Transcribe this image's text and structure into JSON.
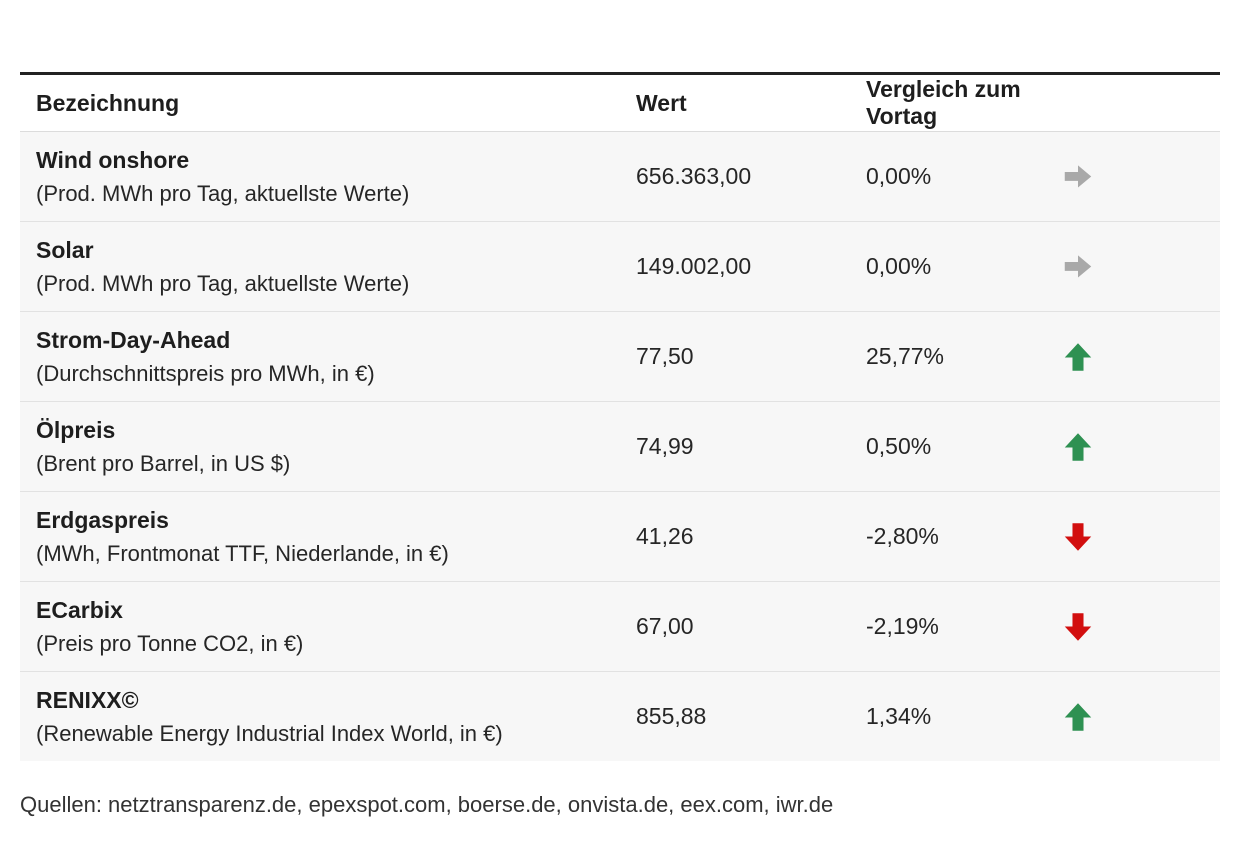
{
  "table": {
    "headers": {
      "name": "Bezeichnung",
      "value": "Wert",
      "change": "Vergleich zum Vortag"
    },
    "rows": [
      {
        "name": "Wind onshore",
        "sub": "(Prod. MWh pro Tag, aktuellste Werte)",
        "value": "656.363,00",
        "change": "0,00%",
        "trend": "right"
      },
      {
        "name": "Solar",
        "sub": "(Prod. MWh pro Tag, aktuellste Werte)",
        "value": "149.002,00",
        "change": "0,00%",
        "trend": "right"
      },
      {
        "name": "Strom-Day-Ahead",
        "sub": "(Durchschnittspreis pro MWh, in €)",
        "value": "77,50",
        "change": "25,77%",
        "trend": "up"
      },
      {
        "name": "Ölpreis",
        "sub": "(Brent pro Barrel, in US $)",
        "value": "74,99",
        "change": "0,50%",
        "trend": "up"
      },
      {
        "name": "Erdgaspreis",
        "sub": "(MWh, Frontmonat TTF, Niederlande, in €)",
        "value": "41,26",
        "change": "-2,80%",
        "trend": "down"
      },
      {
        "name": "ECarbix",
        "sub": "(Preis pro Tonne CO2, in €)",
        "value": "67,00",
        "change": "-2,19%",
        "trend": "down"
      },
      {
        "name": "RENIXX©",
        "sub": "(Renewable Energy Industrial Index World, in €)",
        "value": "855,88",
        "change": "1,34%",
        "trend": "up"
      }
    ]
  },
  "colors": {
    "neutral": "#a9a9a9",
    "up": "#2e9152",
    "down": "#d20f0f"
  },
  "footer": {
    "sources": "Quellen: netztransparenz.de, epexspot.com, boerse.de, onvista.de, eex.com, iwr.de"
  }
}
